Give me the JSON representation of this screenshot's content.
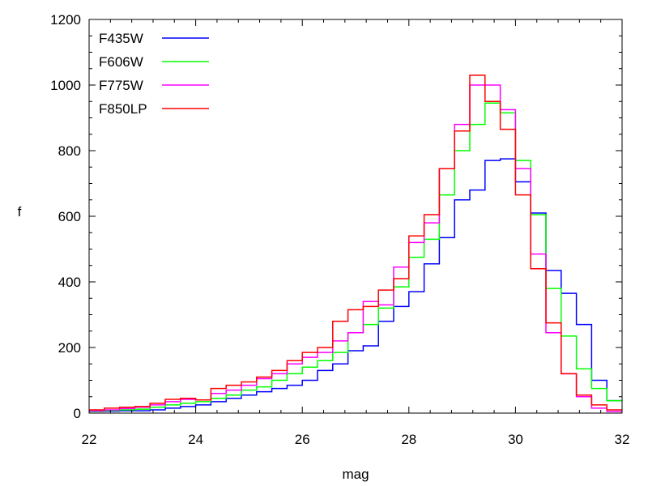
{
  "chart_data": {
    "type": "line",
    "step": true,
    "xlabel": "mag",
    "ylabel": "f",
    "xlim": [
      22,
      32
    ],
    "ylim": [
      0,
      1200
    ],
    "xticks": [
      22,
      24,
      26,
      28,
      30,
      32
    ],
    "yticks": [
      0,
      200,
      400,
      600,
      800,
      1000,
      1200
    ],
    "xtick_labels": [
      "22",
      "24",
      "26",
      "28",
      "30",
      "32"
    ],
    "ytick_labels": [
      "0",
      "200",
      "400",
      "600",
      "800",
      "1000",
      "1200"
    ],
    "grid": false,
    "legend_position": "top-left",
    "bin_edges": [
      22,
      22.2857,
      22.5714,
      22.8571,
      23.1429,
      23.4286,
      23.7143,
      24,
      24.2857,
      24.5714,
      24.8571,
      25.1429,
      25.4286,
      25.7143,
      26,
      26.2857,
      26.5714,
      26.8571,
      27.1429,
      27.4286,
      27.7143,
      28,
      28.2857,
      28.5714,
      28.8571,
      29.1429,
      29.4286,
      29.7143,
      30,
      30.2857,
      30.5714,
      30.8571,
      31.1429,
      31.4286,
      31.7143,
      32
    ],
    "series": [
      {
        "name": "F435W",
        "color": "#0000ff",
        "values": [
          5,
          6,
          7,
          7,
          10,
          15,
          20,
          25,
          35,
          45,
          55,
          65,
          75,
          85,
          100,
          130,
          150,
          190,
          205,
          280,
          325,
          370,
          455,
          535,
          650,
          680,
          770,
          775,
          705,
          610,
          435,
          365,
          270,
          100,
          38
        ]
      },
      {
        "name": "F606W",
        "color": "#00ff00",
        "values": [
          6,
          8,
          10,
          12,
          18,
          25,
          30,
          35,
          45,
          55,
          70,
          80,
          100,
          120,
          140,
          160,
          185,
          245,
          270,
          320,
          385,
          475,
          530,
          665,
          800,
          880,
          945,
          915,
          770,
          605,
          380,
          235,
          135,
          75,
          38
        ]
      },
      {
        "name": "F775W",
        "color": "#ff00ff",
        "values": [
          7,
          10,
          14,
          18,
          25,
          35,
          42,
          40,
          60,
          70,
          85,
          105,
          120,
          150,
          170,
          185,
          220,
          245,
          340,
          330,
          445,
          520,
          580,
          745,
          880,
          1000,
          1000,
          925,
          745,
          485,
          245,
          120,
          50,
          15,
          5
        ]
      },
      {
        "name": "F850LP",
        "color": "#ff0000",
        "values": [
          10,
          15,
          18,
          20,
          30,
          42,
          45,
          40,
          75,
          85,
          95,
          110,
          130,
          160,
          185,
          200,
          280,
          315,
          325,
          375,
          410,
          540,
          605,
          745,
          860,
          1030,
          950,
          865,
          665,
          440,
          275,
          120,
          55,
          25,
          10
        ]
      }
    ]
  }
}
